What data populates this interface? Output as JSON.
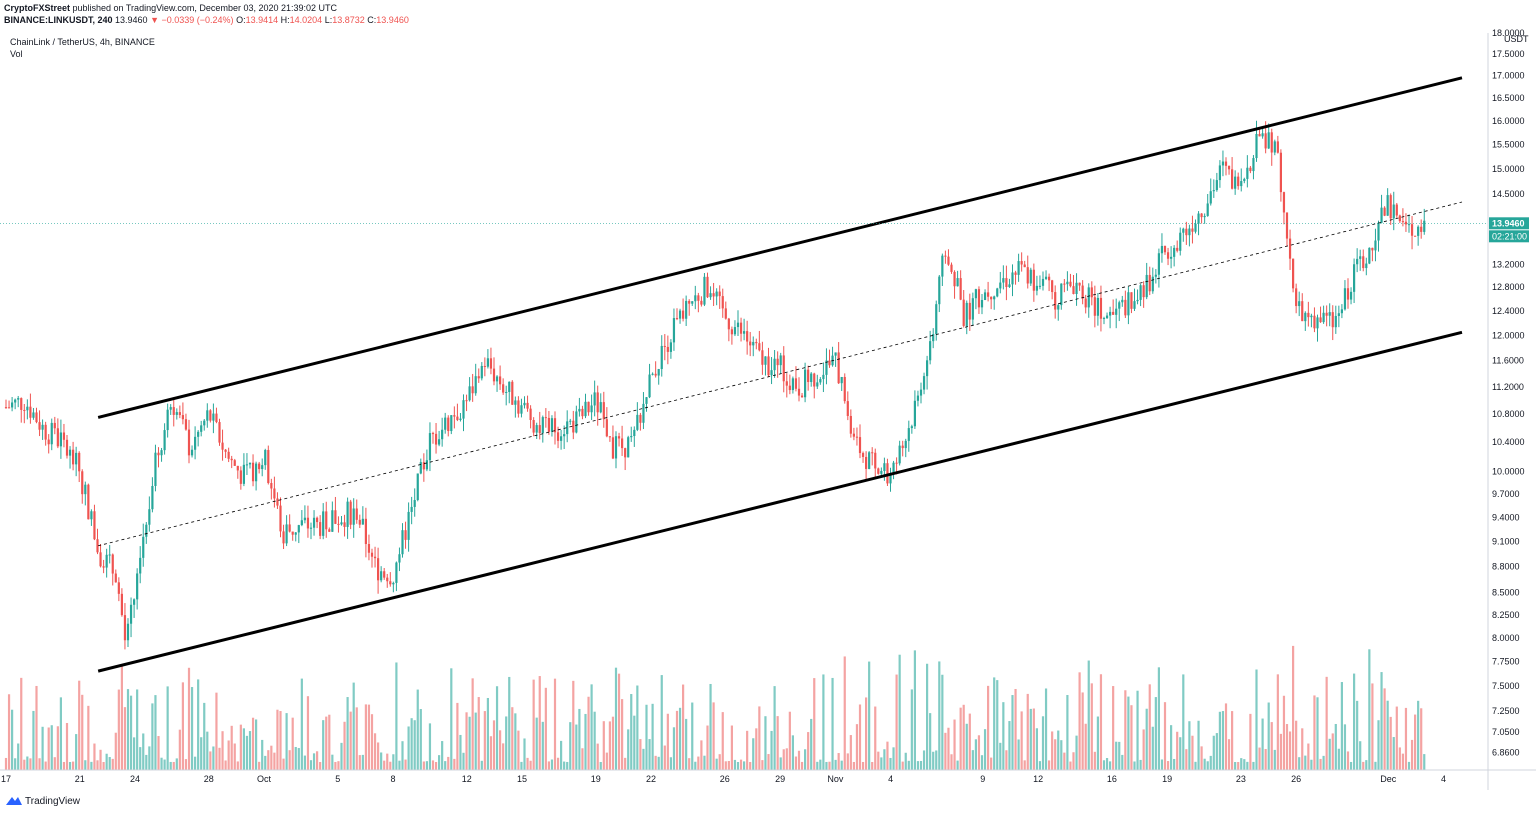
{
  "header": {
    "line1_author": "CryptoFXStreet",
    "line1_rest": " published on TradingView.com, December 03, 2020 21:39:02 UTC",
    "symbol": "BINANCE:LINKUSDT, 240",
    "last": "13.9460",
    "change": "▼ −0.0339 (−0.24%)",
    "o_label": "O:",
    "o": "13.9414",
    "h_label": "H:",
    "h": "14.0204",
    "l_label": "L:",
    "l": "13.8732",
    "c_label": "C:",
    "c": "13.9460"
  },
  "legend": {
    "title": "ChainLink / TetherUS, 4h, BINANCE",
    "indicator": "Vol"
  },
  "footer": {
    "brand": "TradingView"
  },
  "colors": {
    "up": "#26a69a",
    "down": "#ef5350",
    "vol_up": "#80cbc4",
    "vol_down": "#f4a3a2",
    "channel": "#000000",
    "price_line": "#26a69a"
  },
  "chart_data": {
    "type": "candlestick",
    "title": "ChainLink / TetherUS, 4h, BINANCE",
    "currency_label": "USDT",
    "y_scale": "log",
    "ylim": [
      6.7,
      18.0
    ],
    "y_ticks": [
      "18.0000",
      "17.5000",
      "17.0000",
      "16.5000",
      "16.0000",
      "15.5000",
      "15.0000",
      "14.5000",
      "13.2000",
      "12.8000",
      "12.4000",
      "12.0000",
      "11.6000",
      "11.2000",
      "10.8000",
      "10.4000",
      "10.0000",
      "9.7000",
      "9.4000",
      "9.1000",
      "8.8000",
      "8.5000",
      "8.2500",
      "8.0000",
      "7.7500",
      "7.5000",
      "7.2500",
      "7.0500",
      "6.8600"
    ],
    "x_ticks": [
      "17",
      "21",
      "24",
      "28",
      "Oct",
      "5",
      "8",
      "12",
      "15",
      "19",
      "22",
      "26",
      "29",
      "Nov",
      "4",
      "9",
      "12",
      "16",
      "19",
      "23",
      "26",
      "Dec",
      "4"
    ],
    "x_range": [
      "2020-09-17",
      "2020-12-05"
    ],
    "current_price": "13.9460",
    "countdown": "02:21:00",
    "price_path": [
      [
        "2020-09-17",
        10.9
      ],
      [
        "2020-09-18",
        11.0
      ],
      [
        "2020-09-19",
        10.6
      ],
      [
        "2020-09-20",
        10.4
      ],
      [
        "2020-09-21",
        10.0
      ],
      [
        "2020-09-22",
        9.0
      ],
      [
        "2020-09-23",
        8.7
      ],
      [
        "2020-09-23T12",
        7.9
      ],
      [
        "2020-09-24",
        8.5
      ],
      [
        "2020-09-25",
        10.0
      ],
      [
        "2020-09-26",
        11.0
      ],
      [
        "2020-09-27",
        10.3
      ],
      [
        "2020-09-28",
        10.8
      ],
      [
        "2020-09-29",
        10.2
      ],
      [
        "2020-09-30",
        9.9
      ],
      [
        "2020-10-01",
        10.2
      ],
      [
        "2020-10-02",
        9.2
      ],
      [
        "2020-10-03",
        9.3
      ],
      [
        "2020-10-04",
        9.3
      ],
      [
        "2020-10-05",
        9.4
      ],
      [
        "2020-10-06",
        9.5
      ],
      [
        "2020-10-07",
        8.8
      ],
      [
        "2020-10-08",
        8.7
      ],
      [
        "2020-10-09",
        9.5
      ],
      [
        "2020-10-10",
        10.4
      ],
      [
        "2020-10-11",
        10.7
      ],
      [
        "2020-10-12",
        11.0
      ],
      [
        "2020-10-13",
        11.6
      ],
      [
        "2020-10-14",
        11.2
      ],
      [
        "2020-10-15",
        10.9
      ],
      [
        "2020-10-16",
        10.6
      ],
      [
        "2020-10-17",
        10.6
      ],
      [
        "2020-10-18",
        10.7
      ],
      [
        "2020-10-19",
        11.0
      ],
      [
        "2020-10-20",
        10.3
      ],
      [
        "2020-10-21",
        10.4
      ],
      [
        "2020-10-22",
        11.3
      ],
      [
        "2020-10-23",
        12.0
      ],
      [
        "2020-10-24",
        12.5
      ],
      [
        "2020-10-25",
        12.8
      ],
      [
        "2020-10-26",
        12.3
      ],
      [
        "2020-10-27",
        12.0
      ],
      [
        "2020-10-28",
        11.6
      ],
      [
        "2020-10-29",
        11.5
      ],
      [
        "2020-10-30",
        11.2
      ],
      [
        "2020-10-31",
        11.4
      ],
      [
        "2020-11-01",
        11.6
      ],
      [
        "2020-11-02",
        10.4
      ],
      [
        "2020-11-03",
        10.1
      ],
      [
        "2020-11-04",
        9.9
      ],
      [
        "2020-11-05",
        10.6
      ],
      [
        "2020-11-06",
        11.6
      ],
      [
        "2020-11-07",
        13.5
      ],
      [
        "2020-11-08",
        12.3
      ],
      [
        "2020-11-09",
        12.7
      ],
      [
        "2020-11-10",
        12.9
      ],
      [
        "2020-11-11",
        13.1
      ],
      [
        "2020-11-12",
        12.9
      ],
      [
        "2020-11-13",
        12.6
      ],
      [
        "2020-11-14",
        12.9
      ],
      [
        "2020-11-15",
        12.5
      ],
      [
        "2020-11-16",
        12.3
      ],
      [
        "2020-11-17",
        12.6
      ],
      [
        "2020-11-18",
        12.9
      ],
      [
        "2020-11-19",
        13.5
      ],
      [
        "2020-11-20",
        13.8
      ],
      [
        "2020-11-21",
        14.3
      ],
      [
        "2020-11-22",
        15.0
      ],
      [
        "2020-11-23",
        14.6
      ],
      [
        "2020-11-24",
        15.8
      ],
      [
        "2020-11-25",
        15.3
      ],
      [
        "2020-11-26",
        12.4
      ],
      [
        "2020-11-27",
        12.3
      ],
      [
        "2020-11-28",
        12.2
      ],
      [
        "2020-11-29",
        12.9
      ],
      [
        "2020-11-30",
        13.5
      ],
      [
        "2020-12-01",
        14.3
      ],
      [
        "2020-12-02",
        13.8
      ],
      [
        "2020-12-03",
        13.95
      ]
    ],
    "channel_upper": [
      [
        "2020-09-22",
        10.75
      ],
      [
        "2020-12-05",
        16.95
      ]
    ],
    "channel_lower": [
      [
        "2020-09-22",
        7.65
      ],
      [
        "2020-12-05",
        12.05
      ]
    ],
    "channel_mid": [
      [
        "2020-09-22",
        9.05
      ],
      [
        "2020-12-05",
        14.35
      ]
    ]
  }
}
